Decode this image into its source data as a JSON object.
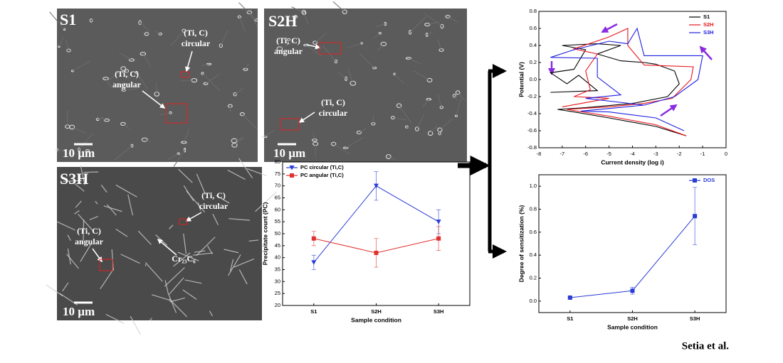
{
  "micrographs": [
    {
      "label": "S1",
      "scale": "10 µm",
      "annotations": [
        {
          "lines": [
            "(Ti, C)",
            "circular"
          ]
        },
        {
          "lines": [
            "(Ti, C)",
            "angular"
          ]
        }
      ]
    },
    {
      "label": "S2H",
      "scale": "10 µm",
      "annotations": [
        {
          "lines": [
            "(Ti, C)",
            "angular"
          ]
        },
        {
          "lines": [
            "(Ti, C)",
            "circular"
          ]
        }
      ]
    },
    {
      "label": "S3H",
      "scale": "10 µm",
      "annotations": [
        {
          "lines": [
            "(Ti, C)",
            "circular"
          ]
        },
        {
          "lines": [
            "(Ti, C)",
            "angular"
          ]
        },
        {
          "lines": [
            "Cr₂₃C₆"
          ]
        }
      ]
    }
  ],
  "chart_data": [
    {
      "type": "line",
      "xlabel": "Sample condition",
      "ylabel": "Precipitate count (PC)",
      "categories": [
        "S1",
        "S2H",
        "S3H"
      ],
      "ylim": [
        20,
        80
      ],
      "yticks": [
        20,
        25,
        30,
        35,
        40,
        45,
        50,
        55,
        60,
        65,
        70,
        75,
        80
      ],
      "legend": "upper left",
      "series": [
        {
          "name": "PC circular (Ti,C)",
          "color": "#2b3bd6",
          "marker": "triangle-down",
          "values": [
            38,
            70,
            55
          ],
          "errors": [
            3,
            6,
            5
          ]
        },
        {
          "name": "PC angular (Ti,C)",
          "color": "#e03030",
          "marker": "square",
          "values": [
            48,
            42,
            48
          ],
          "errors": [
            3,
            6,
            5
          ]
        }
      ]
    },
    {
      "type": "line",
      "xlabel": "Current density (log i)",
      "ylabel": "Potential (V)",
      "xlim": [
        -8,
        0
      ],
      "xticks": [
        -8,
        -7,
        -6,
        -5,
        -4,
        -3,
        -2,
        -1,
        0
      ],
      "ylim": [
        -0.8,
        0.8
      ],
      "yticks": [
        -0.8,
        -0.6,
        -0.4,
        -0.2,
        {
          "value": 0,
          "label": "0.0"
        },
        0.2,
        0.4,
        0.6,
        0.8
      ],
      "legend": "upper right",
      "series": [
        {
          "name": "S1",
          "color": "#000000",
          "x": [
            -1.7,
            -3,
            -5,
            -6.5,
            -7.2,
            -6,
            -4,
            -2.5,
            -2,
            -2.2,
            -3,
            -3.5,
            -4.5,
            -5.5,
            -4.5,
            -5.5,
            -7,
            -6,
            -6.5,
            -7.5,
            -6.8,
            -6.3,
            -5.5,
            -7.5
          ],
          "values": [
            -0.66,
            -0.55,
            -0.45,
            -0.38,
            -0.35,
            -0.33,
            -0.28,
            -0.2,
            -0.05,
            0.1,
            0.18,
            0.2,
            0.22,
            0.3,
            0.4,
            0.42,
            0.4,
            0.35,
            0.12,
            0.08,
            -0.05,
            0.05,
            -0.13,
            -0.15
          ]
        },
        {
          "name": "S2H",
          "color": "#e8141c",
          "x": [
            -1.7,
            -3,
            -5,
            -6.8,
            -5,
            -3.5,
            -2.3,
            -1.5,
            -1.4,
            -3.5,
            -4.2,
            -4.2,
            -5,
            -6.5,
            -5.5,
            -6,
            -5.8,
            -6.5,
            -5,
            -7
          ],
          "values": [
            -0.66,
            -0.53,
            -0.43,
            -0.35,
            -0.32,
            -0.28,
            -0.22,
            0,
            0.15,
            0.17,
            0.4,
            0.6,
            0.5,
            0.36,
            0.3,
            0.1,
            -0.12,
            -0.2,
            -0.22,
            -0.32
          ]
        },
        {
          "name": "S3H",
          "color": "#1f1fe0",
          "x": [
            -1.8,
            -3,
            -5,
            -6.2,
            -3.5,
            -2.2,
            -1.2,
            -1,
            -3.5,
            -3.8,
            -4.2,
            -5,
            -6.5,
            -7.5,
            -5.5,
            -5.5,
            -4.5,
            -6,
            -3.5
          ],
          "values": [
            -0.6,
            -0.45,
            -0.38,
            -0.37,
            -0.3,
            -0.2,
            0,
            0.28,
            0.28,
            0.6,
            0.42,
            0.45,
            0.35,
            0.26,
            0.25,
            0.03,
            -0.18,
            -0.22,
            -0.3
          ]
        }
      ]
    },
    {
      "type": "line",
      "xlabel": "Sample condition",
      "ylabel": "Degree of sensitization (%)",
      "categories": [
        "S1",
        "S2H",
        "S3H"
      ],
      "ylim": [
        -0.1,
        1.1
      ],
      "yticks": [
        {
          "value": 0,
          "label": "0.0"
        },
        0.2,
        0.4,
        0.6,
        0.8,
        {
          "value": 1,
          "label": "1.0"
        }
      ],
      "legend": "upper right",
      "series": [
        {
          "name": "DOS",
          "color": "#2b3bd6",
          "marker": "square",
          "values": [
            0.03,
            0.09,
            0.74
          ],
          "errors": [
            0.01,
            0.03,
            0.25
          ]
        }
      ]
    }
  ],
  "credit": "Setia et al."
}
